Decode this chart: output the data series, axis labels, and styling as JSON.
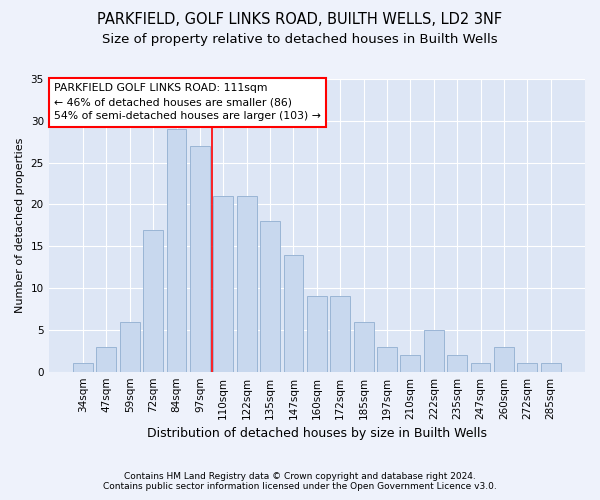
{
  "title1": "PARKFIELD, GOLF LINKS ROAD, BUILTH WELLS, LD2 3NF",
  "title2": "Size of property relative to detached houses in Builth Wells",
  "xlabel": "Distribution of detached houses by size in Builth Wells",
  "ylabel": "Number of detached properties",
  "categories": [
    "34sqm",
    "47sqm",
    "59sqm",
    "72sqm",
    "84sqm",
    "97sqm",
    "110sqm",
    "122sqm",
    "135sqm",
    "147sqm",
    "160sqm",
    "172sqm",
    "185sqm",
    "197sqm",
    "210sqm",
    "222sqm",
    "235sqm",
    "247sqm",
    "260sqm",
    "272sqm",
    "285sqm"
  ],
  "values": [
    1,
    3,
    6,
    17,
    29,
    27,
    21,
    21,
    18,
    14,
    9,
    9,
    6,
    3,
    2,
    5,
    2,
    1,
    3,
    1,
    1
  ],
  "bar_color": "#c8d8ee",
  "bar_edge_color": "#9ab5d5",
  "annotation_text": "PARKFIELD GOLF LINKS ROAD: 111sqm\n← 46% of detached houses are smaller (86)\n54% of semi-detached houses are larger (103) →",
  "annotation_box_color": "white",
  "annotation_box_edge_color": "red",
  "red_line_index": 5.5,
  "ylim": [
    0,
    35
  ],
  "yticks": [
    0,
    5,
    10,
    15,
    20,
    25,
    30,
    35
  ],
  "footer1": "Contains HM Land Registry data © Crown copyright and database right 2024.",
  "footer2": "Contains public sector information licensed under the Open Government Licence v3.0.",
  "bg_color": "#eef2fb",
  "plot_bg_color": "#dde6f5",
  "grid_color": "white",
  "title1_fontsize": 10.5,
  "title2_fontsize": 9.5,
  "ylabel_fontsize": 8,
  "xlabel_fontsize": 9,
  "tick_fontsize": 7.5,
  "annotation_fontsize": 7.8,
  "footer_fontsize": 6.5
}
